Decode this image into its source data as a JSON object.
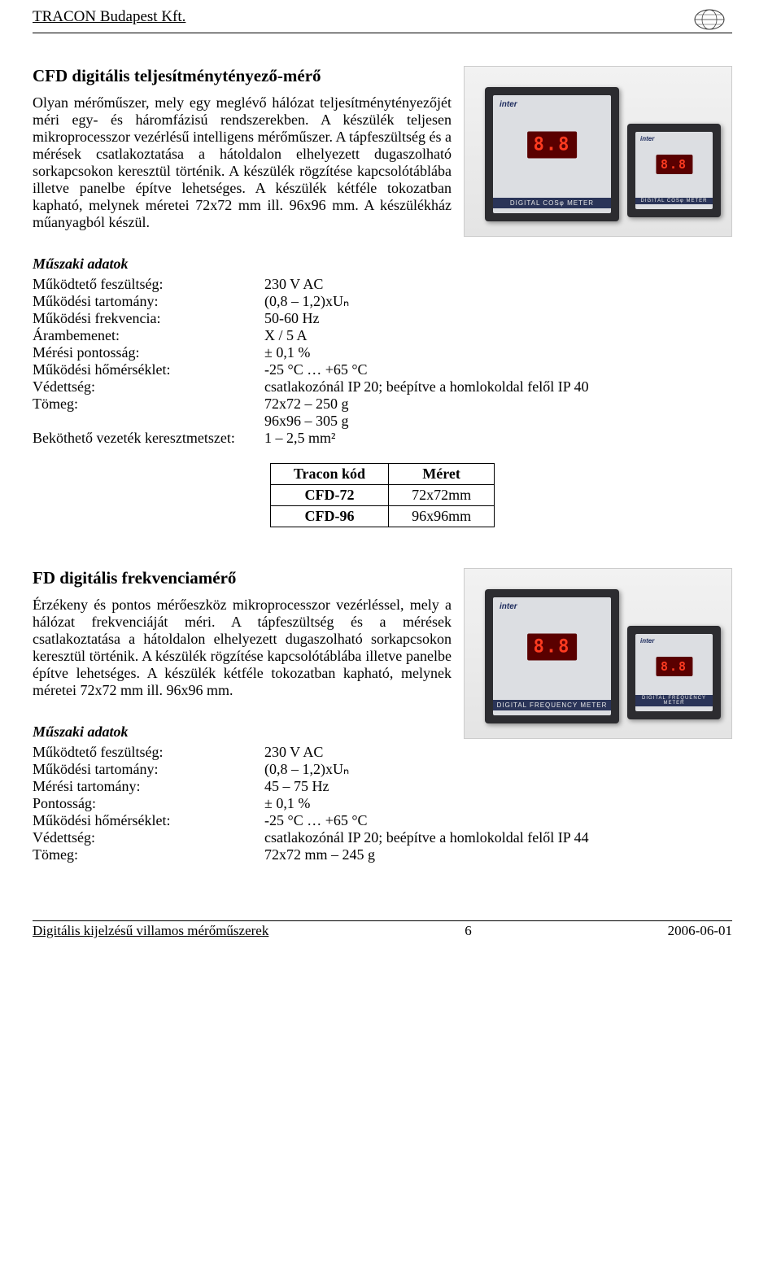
{
  "header": {
    "company": "TRACON Budapest Kft."
  },
  "section1": {
    "title": "CFD digitális teljesítménytényező-mérő",
    "desc": "Olyan mérőműszer, mely egy meglévő hálózat teljesítménytényezőjét méri egy- és háromfázisú rendszerekben. A készülék teljesen mikroprocesszor vezérlésű intelligens mérőműszer. A tápfeszültség és a mérések csatlakoztatása a hátoldalon elhelyezett dugaszolható sorkapcsokon keresztül történik. A készülék rögzítése kapcsolótáblába illetve panelbe építve lehetséges. A készülék kétféle tokozatban kapható, melynek méretei 72x72 mm ill. 96x96 mm. A készülékház műanyagból készül.",
    "device_text": "8.8",
    "device_brand": "inter",
    "device_strip": "DIGITAL COSφ METER",
    "subhead": "Műszaki adatok",
    "specs": [
      {
        "k": "Működtető feszültség:",
        "v": "230 V AC"
      },
      {
        "k": "Működési tartomány:",
        "v": "(0,8 – 1,2)xUₙ"
      },
      {
        "k": "Működési frekvencia:",
        "v": "50-60 Hz"
      },
      {
        "k": "Árambemenet:",
        "v": "X / 5 A"
      },
      {
        "k": "Mérési pontosság:",
        "v": "± 0,1 %"
      },
      {
        "k": "Működési hőmérséklet:",
        "v": "-25 °C … +65 °C"
      },
      {
        "k": "Védettség:",
        "v": "csatlakozónál IP 20; beépítve a homlokoldal felől IP 40"
      },
      {
        "k": "Tömeg:",
        "v": "72x72 – 250 g"
      },
      {
        "k": "",
        "v": "96x96 – 305 g"
      },
      {
        "k": "Beköthető vezeték keresztmetszet:",
        "v": "1 – 2,5 mm²"
      }
    ],
    "table": {
      "headers": [
        "Tracon kód",
        "Méret"
      ],
      "rows": [
        [
          "CFD-72",
          "72x72mm"
        ],
        [
          "CFD-96",
          "96x96mm"
        ]
      ]
    }
  },
  "section2": {
    "title": "FD digitális frekvenciamérő",
    "desc": "Érzékeny és pontos mérőeszköz mikroprocesszor vezérléssel, mely a hálózat frekvenciáját méri. A tápfeszültség és a mérések csatlakoztatása a hátoldalon elhelyezett dugaszolható sorkapcsokon keresztül történik. A készülék rögzítése kapcsolótáblába illetve panelbe építve lehetséges. A készülék kétféle tokozatban kapható, melynek méretei 72x72 mm ill. 96x96 mm.",
    "device_text": "8.8",
    "device_brand": "inter",
    "device_strip": "DIGITAL FREQUENCY METER",
    "subhead": "Műszaki adatok",
    "specs": [
      {
        "k": "Működtető feszültség:",
        "v": "230 V AC"
      },
      {
        "k": "Működési tartomány:",
        "v": "(0,8 – 1,2)xUₙ"
      },
      {
        "k": "Mérési tartomány:",
        "v": "45 – 75 Hz"
      },
      {
        "k": "Pontosság:",
        "v": "± 0,1 %"
      },
      {
        "k": "Működési hőmérséklet:",
        "v": "-25 °C … +65 °C"
      },
      {
        "k": "Védettség:",
        "v": "csatlakozónál IP 20; beépítve a homlokoldal felől IP 44"
      },
      {
        "k": "Tömeg:",
        "v": "72x72 mm – 245 g"
      }
    ]
  },
  "footer": {
    "left": "Digitális kijelzésű villamos mérőműszerek",
    "page": "6",
    "date": "2006-06-01"
  }
}
